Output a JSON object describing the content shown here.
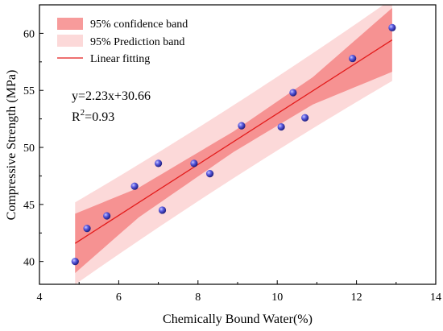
{
  "chart_data": {
    "type": "scatter",
    "xlabel": "Chemically Bound Water(%)",
    "ylabel": "Compressive Strength (MPa)",
    "xlim": [
      4,
      14
    ],
    "ylim": [
      38,
      62.5
    ],
    "xticks": [
      4,
      6,
      8,
      10,
      12,
      14
    ],
    "yticks": [
      40,
      45,
      50,
      55,
      60
    ],
    "legend_position": "top-left",
    "grid": false,
    "legend": [
      {
        "key": "confidence",
        "label": "95% confidence band"
      },
      {
        "key": "prediction",
        "label": "95% Prediction band"
      },
      {
        "key": "fit",
        "label": "Linear fitting"
      }
    ],
    "series": [
      {
        "x": [
          4.9,
          5.2,
          5.7,
          6.4,
          7.0,
          7.1,
          7.9,
          8.3,
          9.1,
          10.1,
          10.4,
          10.7,
          11.9,
          12.9
        ],
        "y": [
          40.0,
          42.9,
          44.0,
          46.6,
          48.6,
          44.5,
          48.6,
          47.7,
          51.9,
          51.8,
          54.8,
          52.6,
          57.8,
          60.5
        ]
      }
    ],
    "fit": {
      "slope": 2.23,
      "intercept": 30.66,
      "x_range": [
        4.9,
        12.9
      ],
      "equation_label": "y=2.23x+30.66",
      "r2_label": "R",
      "r2_sup": "2",
      "r2_value": "=0.93"
    },
    "bands": {
      "confidence": {
        "x_range": [
          4.9,
          12.9
        ],
        "lower_offsets": [
          -2.6,
          -1.3,
          -0.9,
          -1.2,
          -2.8
        ],
        "upper_offsets": [
          2.6,
          1.3,
          0.9,
          1.2,
          2.8
        ],
        "x_nodes": [
          4.9,
          6.5,
          8.9,
          10.9,
          12.9
        ]
      },
      "prediction": {
        "x_range": [
          4.9,
          12.9
        ],
        "half_width_ends": 3.6,
        "half_width_mid": 3.2
      }
    },
    "colors": {
      "confidence": "#f47a7a",
      "prediction": "#fcd9d9",
      "fit": "#e31b1b",
      "point_fill": "#3b3bbf",
      "point_highlight": "#9a9aff"
    }
  }
}
